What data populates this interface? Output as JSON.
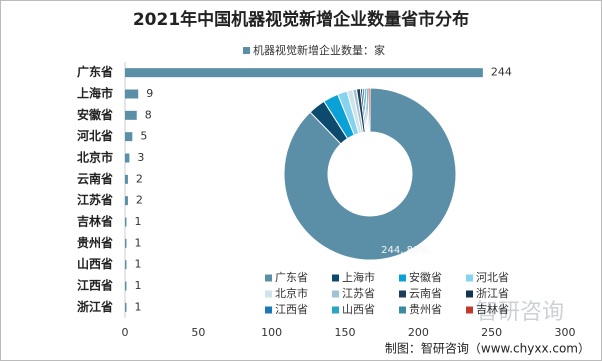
{
  "title": "2021年中国机器视觉新增企业数量省市分布",
  "source": "制图：智研咨询（www.chyxx.com）",
  "watermark": "智研咨询",
  "chart_data": [
    {
      "type": "bar",
      "orientation": "horizontal",
      "legend": "机器视觉新增企业数量：家",
      "categories": [
        "广东省",
        "上海市",
        "安徽省",
        "河北省",
        "北京市",
        "云南省",
        "江苏省",
        "吉林省",
        "贵州省",
        "山西省",
        "江西省",
        "浙江省"
      ],
      "values": [
        244,
        9,
        8,
        5,
        3,
        2,
        2,
        1,
        1,
        1,
        1,
        1
      ],
      "color": "#5b8fa8",
      "xlim": [
        0,
        300
      ],
      "xticks": [
        0,
        50,
        100,
        150,
        200,
        250,
        300
      ],
      "grid": false
    },
    {
      "type": "pie",
      "categories": [
        "广东省",
        "上海市",
        "安徽省",
        "河北省",
        "北京市",
        "江苏省",
        "云南省",
        "浙江省",
        "江西省",
        "山西省",
        "贵州省",
        "吉林省"
      ],
      "values": [
        244,
        9,
        8,
        5,
        3,
        2,
        2,
        1,
        1,
        1,
        1,
        1
      ],
      "value_labels": [
        "244, 88%",
        null,
        null,
        null,
        null,
        null,
        null,
        null,
        null,
        null,
        null,
        null
      ],
      "colors": [
        "#5b8fa8",
        "#0c4a6e",
        "#0aa1d6",
        "#86d3ef",
        "#cfe3ea",
        "#9fc3d4",
        "#1d3f5a",
        "#12344f",
        "#1a78b4",
        "#2aa6c0",
        "#3d8ba0",
        "#c0392b"
      ]
    }
  ]
}
